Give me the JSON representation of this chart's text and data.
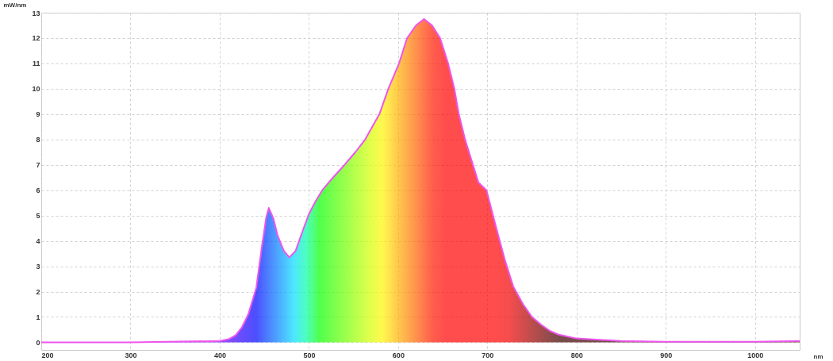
{
  "chart_data": {
    "type": "area",
    "xlabel": "nm",
    "ylabel": "mW/nm",
    "xlim": [
      200,
      1050
    ],
    "xticks": [
      200,
      300,
      400,
      500,
      600,
      700,
      800,
      900,
      1000
    ],
    "ylim": [
      -0.3,
      13
    ],
    "yticks": [
      0,
      1,
      2,
      3,
      4,
      5,
      6,
      7,
      8,
      9,
      10,
      11,
      12,
      13
    ],
    "grid": true,
    "series": [
      {
        "color": "#ee55ee",
        "x": [
          200,
          300,
          400,
          410,
          418,
          425,
          432,
          441,
          447,
          452,
          455,
          460,
          465,
          472,
          478,
          485,
          492,
          500,
          508,
          515,
          527,
          540,
          552,
          563,
          579,
          589,
          601,
          610,
          620,
          629,
          638,
          647,
          656,
          663,
          668,
          675,
          690,
          699,
          710,
          720,
          729,
          740,
          750,
          760,
          770,
          780,
          800,
          850,
          900,
          1000,
          1050
        ],
        "values": [
          0,
          0,
          0.05,
          0.12,
          0.28,
          0.6,
          1.1,
          2.15,
          3.7,
          4.9,
          5.3,
          4.9,
          4.2,
          3.6,
          3.35,
          3.6,
          4.3,
          5.06,
          5.6,
          6.0,
          6.5,
          7.0,
          7.5,
          8.0,
          9.0,
          10.0,
          11.0,
          12.0,
          12.5,
          12.75,
          12.5,
          12.0,
          11.0,
          10.0,
          9.0,
          8.0,
          6.3,
          6.0,
          4.5,
          3.2,
          2.2,
          1.5,
          1.0,
          0.7,
          0.45,
          0.3,
          0.15,
          0.05,
          0.02,
          0.02,
          0.05
        ]
      }
    ]
  }
}
